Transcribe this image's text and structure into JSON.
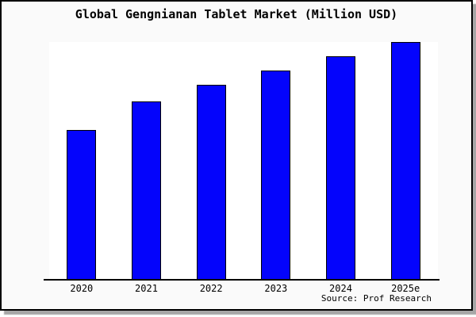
{
  "window": {
    "background": "#fafafa",
    "border_color": "#000000",
    "shadow_color": "#969696"
  },
  "chart_data": {
    "type": "bar",
    "title": "Global Gengnianan Tablet Market (Million USD)",
    "categories": [
      "2020",
      "2021",
      "2022",
      "2023",
      "2024",
      "2025e"
    ],
    "values": [
      63,
      75,
      82,
      88,
      94,
      100
    ],
    "value_note": "no y-axis ticks or labels shown; values estimated as percent of tallest bar",
    "ylim": [
      0,
      100
    ],
    "xlabel": "",
    "ylabel": "",
    "grid": false,
    "legend": false,
    "plot_background": "#ffffff",
    "bar_color": "#0404fc",
    "bar_border_color": "#000000",
    "source": "Source: Prof Research"
  }
}
